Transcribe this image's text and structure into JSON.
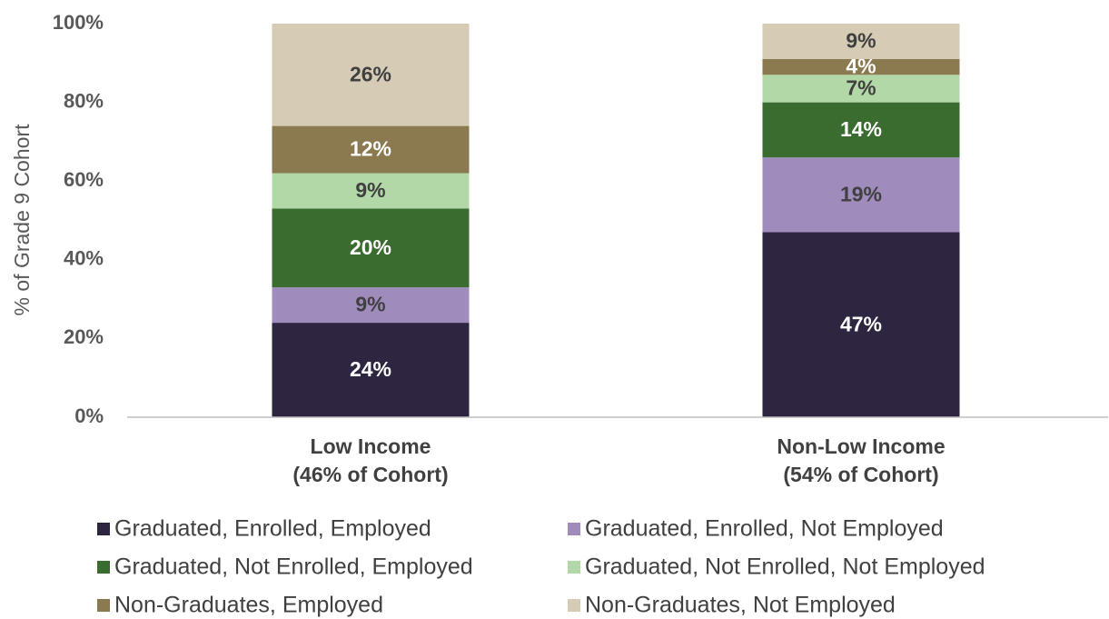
{
  "chart_data": {
    "type": "stacked_bar",
    "y_label": "% of Grade 9 Cohort",
    "categories": [
      "Low Income\n(46% of Cohort)",
      "Non-Low Income\n(54% of Cohort)"
    ],
    "ylim": [
      0,
      100
    ],
    "yticks": [
      {
        "value": 0,
        "label": "0%"
      },
      {
        "value": 20,
        "label": "20%"
      },
      {
        "value": 40,
        "label": "40%"
      },
      {
        "value": 60,
        "label": "60%"
      },
      {
        "value": 80,
        "label": "80%"
      },
      {
        "value": 100,
        "label": "100%"
      }
    ],
    "series": [
      {
        "name": "Graduated, Enrolled, Employed",
        "color": "#2e2540",
        "label_color": "#ffffff",
        "values": [
          24,
          47
        ],
        "value_labels": [
          "24%",
          "47%"
        ]
      },
      {
        "name": "Graduated, Enrolled, Not Employed",
        "color": "#a08bbd",
        "label_color": "#404040",
        "values": [
          9,
          19
        ],
        "value_labels": [
          "9%",
          "19%"
        ]
      },
      {
        "name": "Graduated, Not Enrolled, Employed",
        "color": "#3a6b2f",
        "label_color": "#ffffff",
        "values": [
          20,
          14
        ],
        "value_labels": [
          "20%",
          "14%"
        ]
      },
      {
        "name": "Graduated, Not Enrolled, Not Employed",
        "color": "#b3d8a8",
        "label_color": "#404040",
        "values": [
          9,
          7
        ],
        "value_labels": [
          "9%",
          "7%"
        ]
      },
      {
        "name": "Non-Graduates, Employed",
        "color": "#8b7a4f",
        "label_color": "#ffffff",
        "values": [
          12,
          4
        ],
        "value_labels": [
          "12%",
          "4%"
        ]
      },
      {
        "name": "Non-Graduates, Not Employed",
        "color": "#d6cbb5",
        "label_color": "#404040",
        "values": [
          26,
          9
        ],
        "value_labels": [
          "26%",
          "9%"
        ]
      }
    ]
  }
}
